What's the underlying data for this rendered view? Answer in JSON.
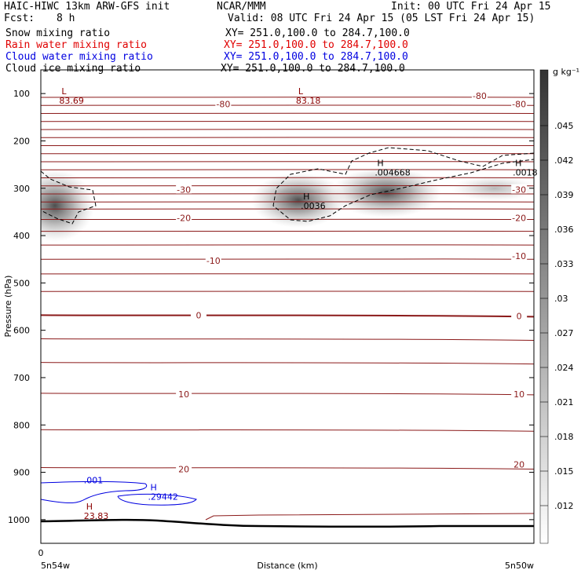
{
  "header": {
    "title_left": "HAIC-HIWC 13km ARW-GFS init",
    "center_label": "NCAR/MMM",
    "init": "Init: 00 UTC Fri 24 Apr 15",
    "fcst_label": "Fcst:",
    "fcst_value": "8 h",
    "valid": "Valid: 08 UTC Fri 24 Apr 15 (05 LST Fri 24 Apr 15)",
    "fields": [
      {
        "name": "Snow mixing ratio",
        "xy": "XY= 251.0,100.0 to 284.7,100.0",
        "color": "#000000"
      },
      {
        "name": "Rain water mixing ratio",
        "xy": "XY= 251.0,100.0 to 284.7,100.0",
        "color": "#e00000"
      },
      {
        "name": "Cloud water mixing ratio",
        "xy": "XY= 251.0,100.0 to 284.7,100.0",
        "color": "#0000e0"
      },
      {
        "name": "Cloud ice mixing ratio",
        "xy": "XY= 251.0,100.0 to 284.7,100.0",
        "color": "#000000"
      }
    ]
  },
  "chart_data": {
    "type": "heatmap",
    "xlabel": "Distance (km)",
    "ylabel": "Pressure (hPa)",
    "x_tick_labels": [
      "0"
    ],
    "x_end_labels": {
      "left": "5n54w",
      "right": "5n50w"
    },
    "y_ticks": [
      100,
      200,
      300,
      400,
      500,
      600,
      700,
      800,
      900,
      1000
    ],
    "y_lim": [
      50,
      1050
    ],
    "colorbar": {
      "unit": "g kg⁻¹",
      "labels": [
        ".045",
        ".042",
        ".039",
        ".036",
        ".033",
        ".03",
        ".027",
        ".024",
        ".021",
        ".018",
        ".015",
        ".012"
      ]
    },
    "temperature_contour_labels": [
      {
        "text": "-80",
        "p": 122,
        "xf": 0.37
      },
      {
        "text": "-80",
        "p": 105,
        "xf": 0.89
      },
      {
        "text": "-80",
        "p": 122,
        "xf": 0.97
      },
      {
        "text": "-30",
        "p": 303,
        "xf": 0.29
      },
      {
        "text": "-30",
        "p": 303,
        "xf": 0.97
      },
      {
        "text": "-20",
        "p": 363,
        "xf": 0.29
      },
      {
        "text": "-20",
        "p": 363,
        "xf": 0.97
      },
      {
        "text": "-10",
        "p": 453,
        "xf": 0.35
      },
      {
        "text": "-10",
        "p": 443,
        "xf": 0.97
      },
      {
        "text": "0",
        "p": 568,
        "xf": 0.32
      },
      {
        "text": "0",
        "p": 570,
        "xf": 0.97
      },
      {
        "text": "10",
        "p": 735,
        "xf": 0.29
      },
      {
        "text": "10",
        "p": 735,
        "xf": 0.97
      },
      {
        "text": "20",
        "p": 893,
        "xf": 0.29
      },
      {
        "text": "20",
        "p": 883,
        "xf": 0.97
      }
    ],
    "extrema_labels": [
      {
        "kind": "L",
        "value": "83.69",
        "p": 118,
        "xf": 0.05,
        "color": "#8b0000"
      },
      {
        "kind": "L",
        "value": "83.18",
        "p": 118,
        "xf": 0.53,
        "color": "#8b0000"
      },
      {
        "kind": "H",
        "value": ".0036",
        "p": 340,
        "xf": 0.54,
        "color": "#000000"
      },
      {
        "kind": "H",
        "value": ".004668",
        "p": 270,
        "xf": 0.69,
        "color": "#000000"
      },
      {
        "kind": "H",
        "value": ".0018",
        "p": 270,
        "xf": 0.97,
        "color": "#000000"
      },
      {
        "kind": "H",
        "value": "23.83",
        "p": 995,
        "xf": 0.1,
        "color": "#8b0000"
      },
      {
        "kind": "H",
        "value": ".29442",
        "p": 955,
        "xf": 0.23,
        "color": "#0000e0"
      },
      {
        "kind": "",
        "value": ".001",
        "p": 920,
        "xf": 0.1,
        "color": "#0000e0"
      }
    ]
  }
}
